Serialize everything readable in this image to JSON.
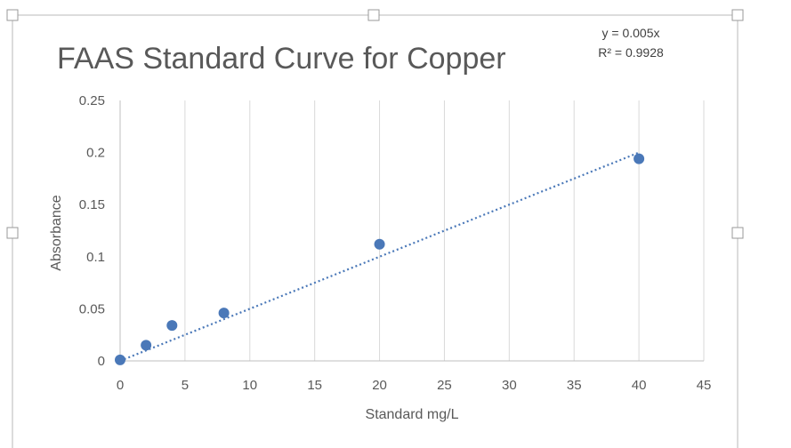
{
  "chart_data": {
    "type": "scatter",
    "title": "FAAS Standard Curve for Copper",
    "xlabel": "Standard mg/L",
    "ylabel": "Absorbance",
    "xlim": [
      0,
      45
    ],
    "ylim": [
      0,
      0.25
    ],
    "x_ticks": [
      "0",
      "5",
      "10",
      "15",
      "20",
      "25",
      "30",
      "35",
      "40",
      "45"
    ],
    "y_ticks": [
      "0",
      "0.05",
      "0.1",
      "0.15",
      "0.2",
      "0.25"
    ],
    "grid": "vertical",
    "series": [
      {
        "x": [
          0,
          2,
          4,
          8,
          20,
          40
        ],
        "y": [
          0.001,
          0.015,
          0.034,
          0.046,
          0.112,
          0.194
        ],
        "color": "#4a78b8"
      }
    ],
    "trendline": {
      "type": "linear",
      "slope": 0.005,
      "intercept": 0,
      "x_range": [
        0,
        40
      ],
      "color": "#4a78b8",
      "equation": "y = 0.005x",
      "r_squared": "R² = 0.9928"
    }
  }
}
